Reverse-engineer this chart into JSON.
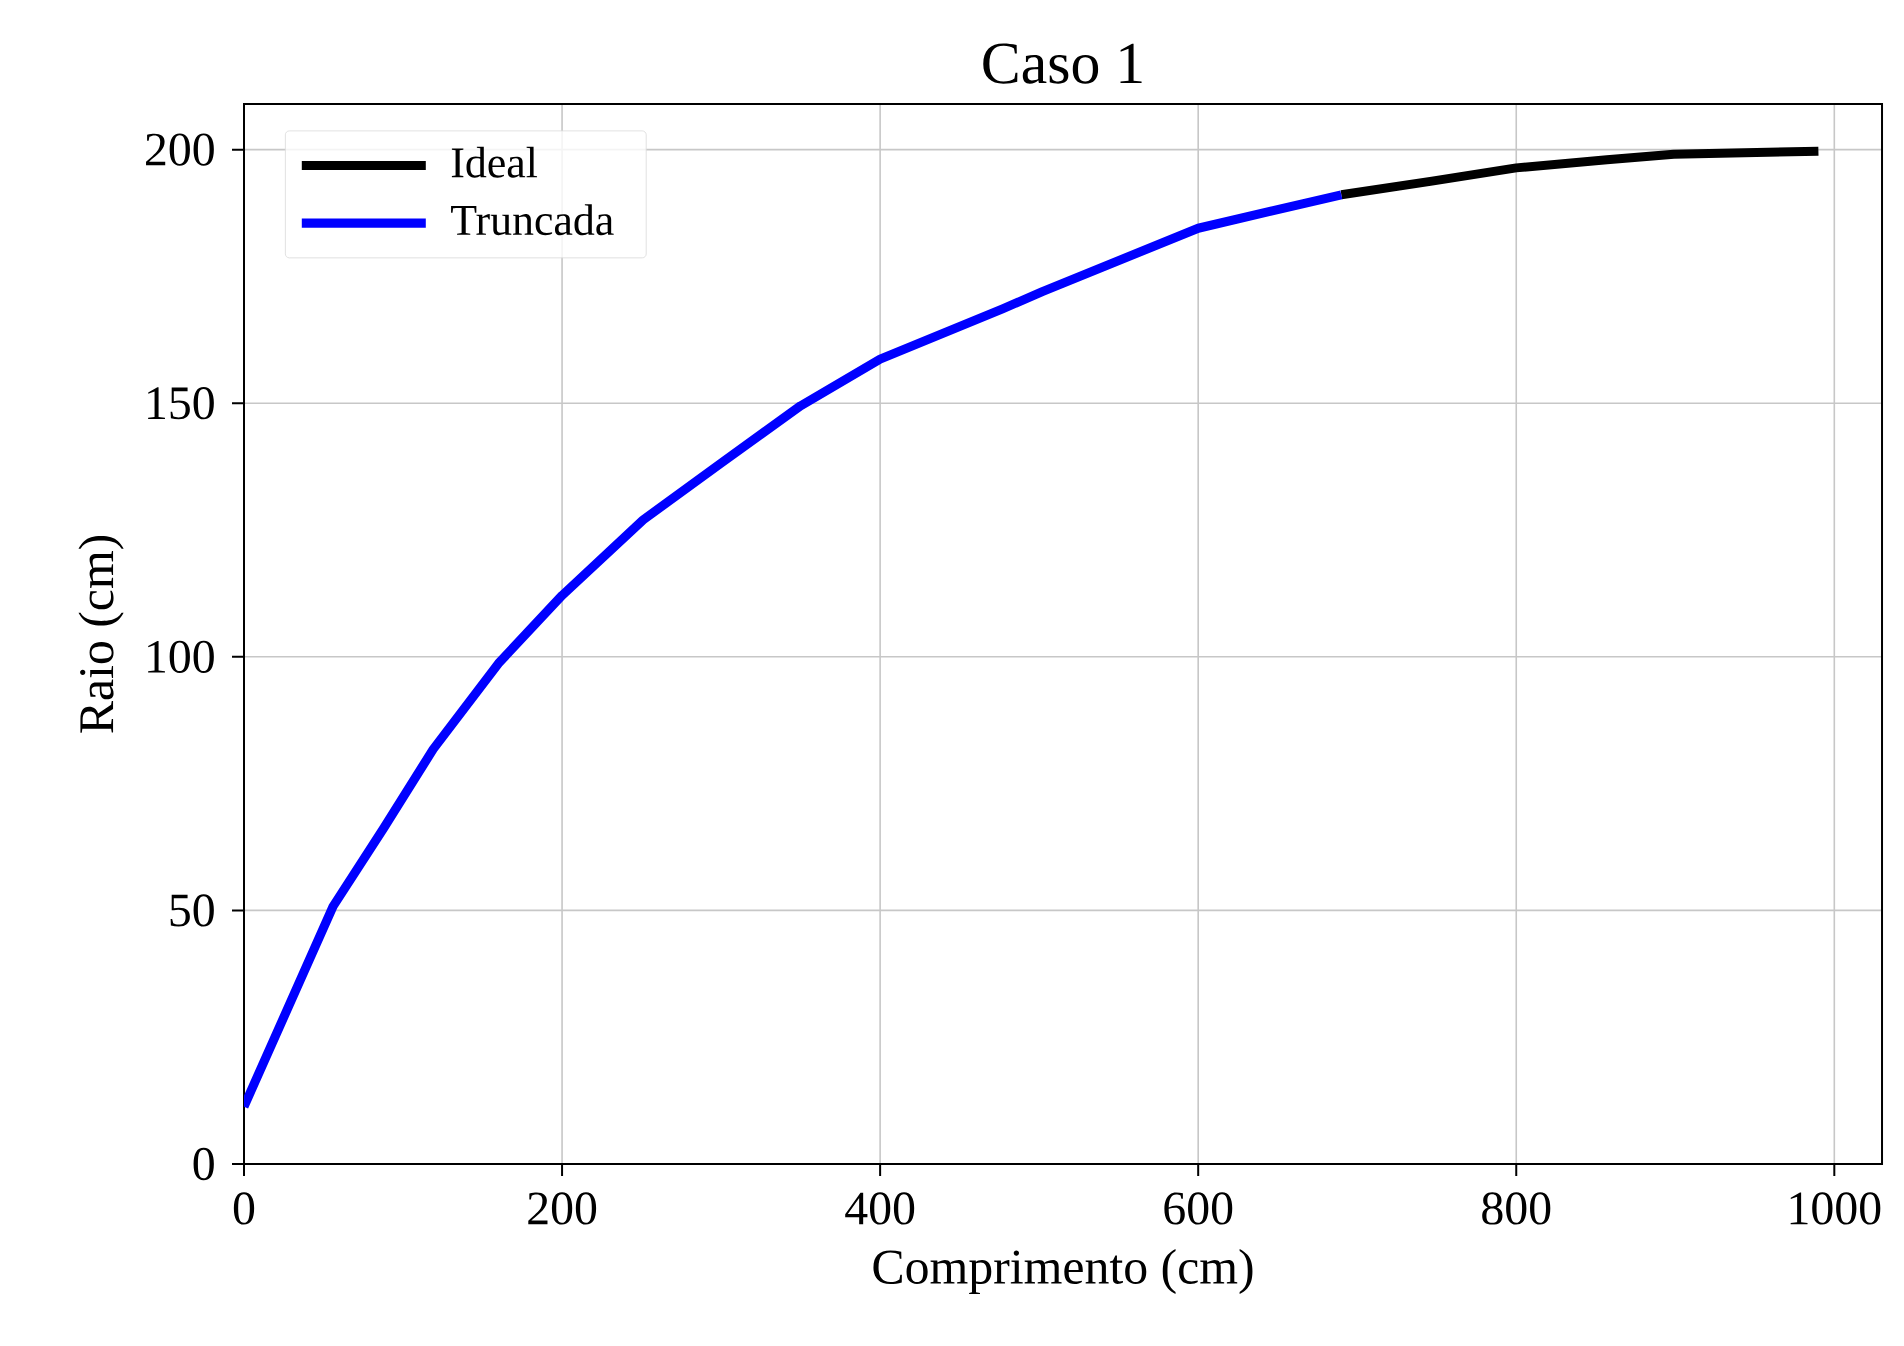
{
  "chart_data": {
    "type": "line",
    "title": "Caso 1",
    "xlabel": "Comprimento (cm)",
    "ylabel": "Raio (cm)",
    "xlim": [
      0,
      1030
    ],
    "ylim": [
      0,
      209
    ],
    "xticks": [
      0,
      200,
      400,
      600,
      800,
      1000
    ],
    "yticks": [
      0,
      50,
      100,
      150,
      200
    ],
    "grid": true,
    "legend": "top left",
    "line_style": "solid",
    "series": [
      {
        "name": "Ideal",
        "color": "#000000",
        "x": [
          690,
          747,
          800,
          857,
          899,
          990
        ],
        "values": [
          191.1,
          193.8,
          196.4,
          198,
          199.1,
          199.7
        ]
      },
      {
        "name": "Truncada",
        "color": "#0000ff",
        "x": [
          0,
          56,
          88,
          119,
          160,
          200,
          251,
          300,
          350,
          400,
          477,
          502,
          600,
          690
        ],
        "values": [
          11.3,
          50.8,
          66.3,
          81.8,
          98.7,
          112.1,
          127,
          138.2,
          149.5,
          158.7,
          168.6,
          172,
          184.5,
          191.1
        ]
      }
    ]
  }
}
